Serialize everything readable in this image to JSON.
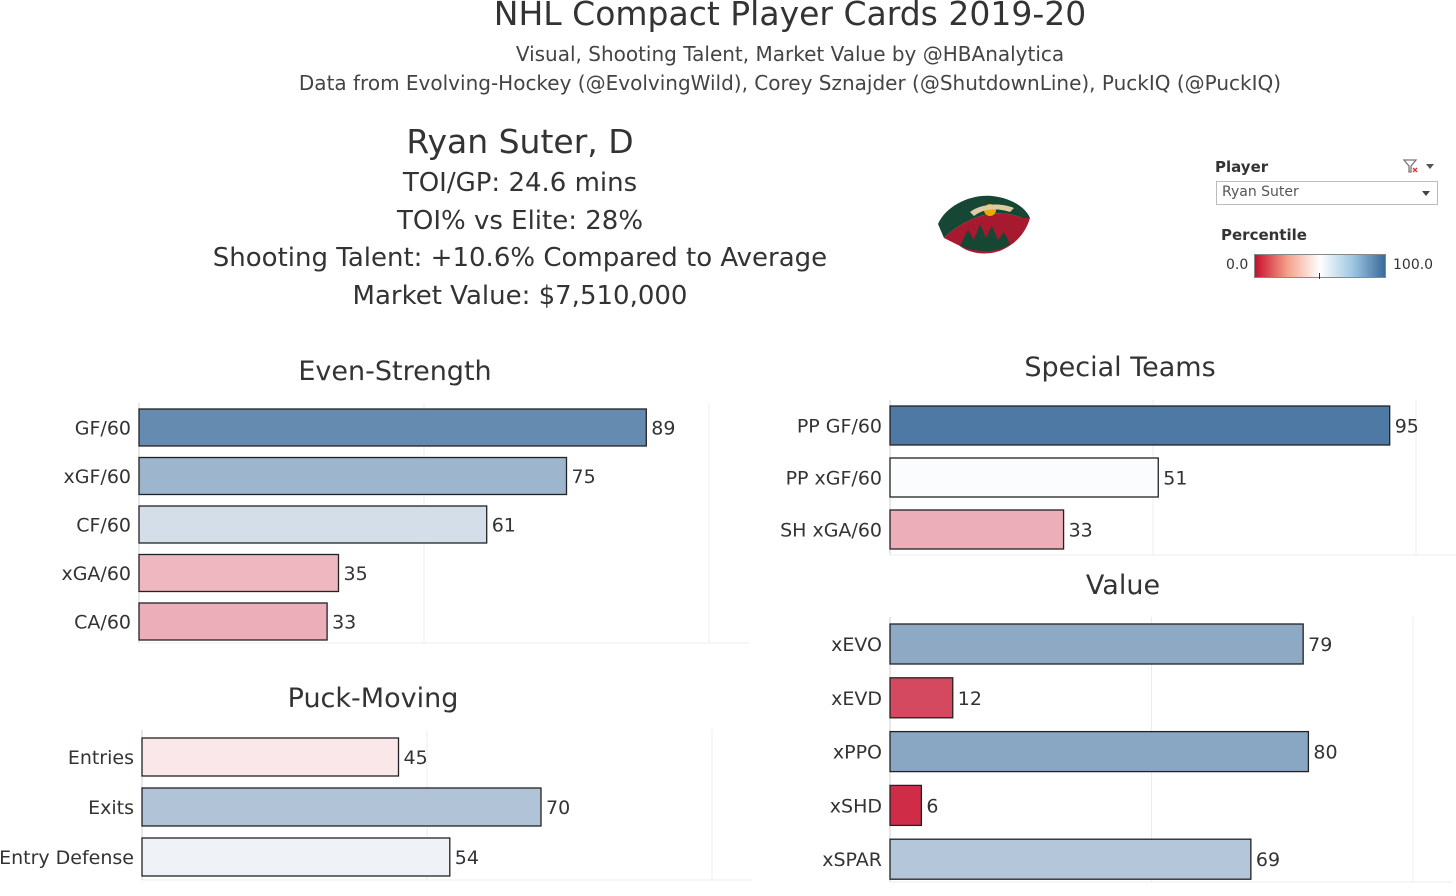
{
  "header": {
    "title": "NHL Compact Player Cards 2019-20",
    "subtitle": "Visual, Shooting Talent, Market Value by @HBAnalytica",
    "credits": "Data from Evolving-Hockey (@EvolvingWild), Corey Sznajder (@ShutdownLine), PuckIQ (@PuckIQ)"
  },
  "player": {
    "name": "Ryan Suter, D",
    "toi_gp": "TOI/GP: 24.6 mins",
    "toi_elite": "TOI% vs Elite: 28%",
    "shooting": "Shooting Talent: +10.6% Compared to Average",
    "market_value": "Market Value: $7,510,000",
    "team_logo_icon": "minnesota-wild-logo-icon"
  },
  "filter": {
    "label": "Player",
    "selected": "Ryan Suter",
    "legend_title": "Percentile",
    "legend_min": "0.0",
    "legend_max": "100.0",
    "colors": {
      "low": "#c8102e",
      "mid": "#ffffff",
      "high": "#3a6a9a"
    }
  },
  "chart_data": [
    {
      "type": "bar",
      "title": "Even-Strength",
      "orientation": "horizontal",
      "categories": [
        "GF/60",
        "xGF/60",
        "CF/60",
        "xGA/60",
        "CA/60"
      ],
      "values": [
        89,
        75,
        61,
        35,
        33
      ],
      "xlim": [
        0,
        100
      ],
      "grid": true
    },
    {
      "type": "bar",
      "title": "Special Teams",
      "orientation": "horizontal",
      "categories": [
        "PP GF/60",
        "PP xGF/60",
        "SH xGA/60"
      ],
      "values": [
        95,
        51,
        33
      ],
      "xlim": [
        0,
        100
      ],
      "grid": true
    },
    {
      "type": "bar",
      "title": "Puck-Moving",
      "orientation": "horizontal",
      "categories": [
        "Entries",
        "Exits",
        "Entry Defense"
      ],
      "values": [
        45,
        70,
        54
      ],
      "xlim": [
        0,
        100
      ],
      "grid": true
    },
    {
      "type": "bar",
      "title": "Value",
      "orientation": "horizontal",
      "categories": [
        "xEVO",
        "xEVD",
        "xPPO",
        "xSHD",
        "xSPAR"
      ],
      "values": [
        79,
        12,
        80,
        6,
        69
      ],
      "xlim": [
        0,
        100
      ],
      "grid": true
    }
  ]
}
